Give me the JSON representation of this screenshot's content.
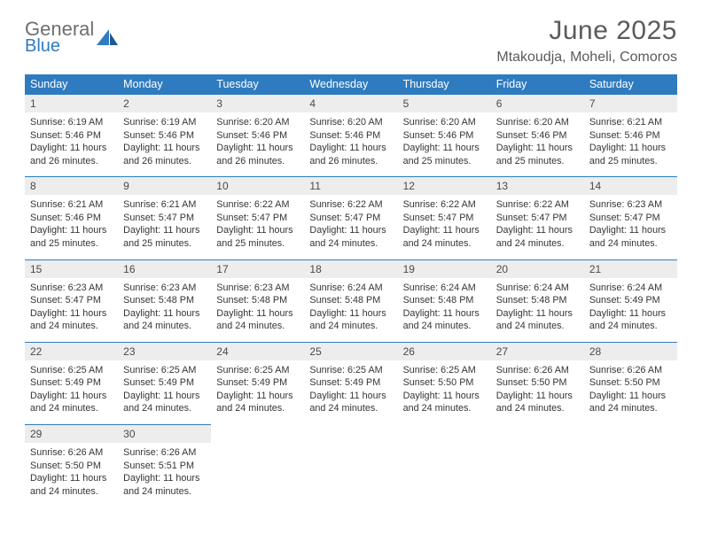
{
  "brand": {
    "word1": "General",
    "word2": "Blue",
    "accent_color": "#2f7bbf",
    "text_color": "#6f6f6f"
  },
  "title": {
    "month": "June 2025",
    "location": "Mtakoudja, Moheli, Comoros"
  },
  "colors": {
    "header_bg": "#2f7bbf",
    "header_text": "#ffffff",
    "daynum_bg": "#ededed",
    "border": "#2f7bbf",
    "body_text": "#353535"
  },
  "weekdays": [
    "Sunday",
    "Monday",
    "Tuesday",
    "Wednesday",
    "Thursday",
    "Friday",
    "Saturday"
  ],
  "weeks": [
    {
      "days": [
        {
          "num": "1",
          "sunrise": "Sunrise: 6:19 AM",
          "sunset": "Sunset: 5:46 PM",
          "daylight": "Daylight: 11 hours and 26 minutes."
        },
        {
          "num": "2",
          "sunrise": "Sunrise: 6:19 AM",
          "sunset": "Sunset: 5:46 PM",
          "daylight": "Daylight: 11 hours and 26 minutes."
        },
        {
          "num": "3",
          "sunrise": "Sunrise: 6:20 AM",
          "sunset": "Sunset: 5:46 PM",
          "daylight": "Daylight: 11 hours and 26 minutes."
        },
        {
          "num": "4",
          "sunrise": "Sunrise: 6:20 AM",
          "sunset": "Sunset: 5:46 PM",
          "daylight": "Daylight: 11 hours and 26 minutes."
        },
        {
          "num": "5",
          "sunrise": "Sunrise: 6:20 AM",
          "sunset": "Sunset: 5:46 PM",
          "daylight": "Daylight: 11 hours and 25 minutes."
        },
        {
          "num": "6",
          "sunrise": "Sunrise: 6:20 AM",
          "sunset": "Sunset: 5:46 PM",
          "daylight": "Daylight: 11 hours and 25 minutes."
        },
        {
          "num": "7",
          "sunrise": "Sunrise: 6:21 AM",
          "sunset": "Sunset: 5:46 PM",
          "daylight": "Daylight: 11 hours and 25 minutes."
        }
      ]
    },
    {
      "days": [
        {
          "num": "8",
          "sunrise": "Sunrise: 6:21 AM",
          "sunset": "Sunset: 5:46 PM",
          "daylight": "Daylight: 11 hours and 25 minutes."
        },
        {
          "num": "9",
          "sunrise": "Sunrise: 6:21 AM",
          "sunset": "Sunset: 5:47 PM",
          "daylight": "Daylight: 11 hours and 25 minutes."
        },
        {
          "num": "10",
          "sunrise": "Sunrise: 6:22 AM",
          "sunset": "Sunset: 5:47 PM",
          "daylight": "Daylight: 11 hours and 25 minutes."
        },
        {
          "num": "11",
          "sunrise": "Sunrise: 6:22 AM",
          "sunset": "Sunset: 5:47 PM",
          "daylight": "Daylight: 11 hours and 24 minutes."
        },
        {
          "num": "12",
          "sunrise": "Sunrise: 6:22 AM",
          "sunset": "Sunset: 5:47 PM",
          "daylight": "Daylight: 11 hours and 24 minutes."
        },
        {
          "num": "13",
          "sunrise": "Sunrise: 6:22 AM",
          "sunset": "Sunset: 5:47 PM",
          "daylight": "Daylight: 11 hours and 24 minutes."
        },
        {
          "num": "14",
          "sunrise": "Sunrise: 6:23 AM",
          "sunset": "Sunset: 5:47 PM",
          "daylight": "Daylight: 11 hours and 24 minutes."
        }
      ]
    },
    {
      "days": [
        {
          "num": "15",
          "sunrise": "Sunrise: 6:23 AM",
          "sunset": "Sunset: 5:47 PM",
          "daylight": "Daylight: 11 hours and 24 minutes."
        },
        {
          "num": "16",
          "sunrise": "Sunrise: 6:23 AM",
          "sunset": "Sunset: 5:48 PM",
          "daylight": "Daylight: 11 hours and 24 minutes."
        },
        {
          "num": "17",
          "sunrise": "Sunrise: 6:23 AM",
          "sunset": "Sunset: 5:48 PM",
          "daylight": "Daylight: 11 hours and 24 minutes."
        },
        {
          "num": "18",
          "sunrise": "Sunrise: 6:24 AM",
          "sunset": "Sunset: 5:48 PM",
          "daylight": "Daylight: 11 hours and 24 minutes."
        },
        {
          "num": "19",
          "sunrise": "Sunrise: 6:24 AM",
          "sunset": "Sunset: 5:48 PM",
          "daylight": "Daylight: 11 hours and 24 minutes."
        },
        {
          "num": "20",
          "sunrise": "Sunrise: 6:24 AM",
          "sunset": "Sunset: 5:48 PM",
          "daylight": "Daylight: 11 hours and 24 minutes."
        },
        {
          "num": "21",
          "sunrise": "Sunrise: 6:24 AM",
          "sunset": "Sunset: 5:49 PM",
          "daylight": "Daylight: 11 hours and 24 minutes."
        }
      ]
    },
    {
      "days": [
        {
          "num": "22",
          "sunrise": "Sunrise: 6:25 AM",
          "sunset": "Sunset: 5:49 PM",
          "daylight": "Daylight: 11 hours and 24 minutes."
        },
        {
          "num": "23",
          "sunrise": "Sunrise: 6:25 AM",
          "sunset": "Sunset: 5:49 PM",
          "daylight": "Daylight: 11 hours and 24 minutes."
        },
        {
          "num": "24",
          "sunrise": "Sunrise: 6:25 AM",
          "sunset": "Sunset: 5:49 PM",
          "daylight": "Daylight: 11 hours and 24 minutes."
        },
        {
          "num": "25",
          "sunrise": "Sunrise: 6:25 AM",
          "sunset": "Sunset: 5:49 PM",
          "daylight": "Daylight: 11 hours and 24 minutes."
        },
        {
          "num": "26",
          "sunrise": "Sunrise: 6:25 AM",
          "sunset": "Sunset: 5:50 PM",
          "daylight": "Daylight: 11 hours and 24 minutes."
        },
        {
          "num": "27",
          "sunrise": "Sunrise: 6:26 AM",
          "sunset": "Sunset: 5:50 PM",
          "daylight": "Daylight: 11 hours and 24 minutes."
        },
        {
          "num": "28",
          "sunrise": "Sunrise: 6:26 AM",
          "sunset": "Sunset: 5:50 PM",
          "daylight": "Daylight: 11 hours and 24 minutes."
        }
      ]
    },
    {
      "days": [
        {
          "num": "29",
          "sunrise": "Sunrise: 6:26 AM",
          "sunset": "Sunset: 5:50 PM",
          "daylight": "Daylight: 11 hours and 24 minutes."
        },
        {
          "num": "30",
          "sunrise": "Sunrise: 6:26 AM",
          "sunset": "Sunset: 5:51 PM",
          "daylight": "Daylight: 11 hours and 24 minutes."
        },
        null,
        null,
        null,
        null,
        null
      ]
    }
  ]
}
